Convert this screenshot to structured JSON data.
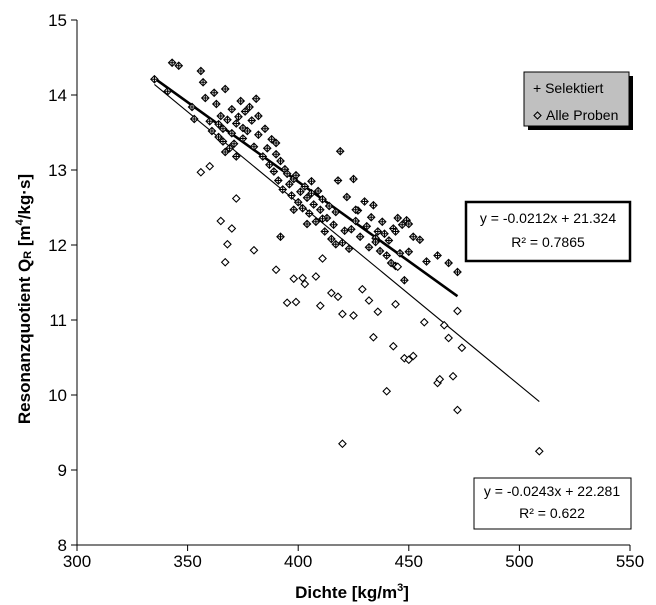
{
  "chart_data": {
    "type": "scatter",
    "xlabel": "Dichte [kg/m³]",
    "ylabel": "Resonanzquotient Q_R [m⁴/kg·s]",
    "xlim": [
      300,
      550
    ],
    "ylim": [
      8,
      15
    ],
    "x_ticks": [
      "300",
      "350",
      "400",
      "450",
      "500",
      "550"
    ],
    "y_ticks": [
      "8",
      "9",
      "10",
      "11",
      "12",
      "13",
      "14",
      "15"
    ],
    "legend_labels": [
      "Selektiert",
      "Alle Proben"
    ],
    "legend_position": "top-right",
    "series": [
      {
        "name": "Selektiert",
        "marker": "plus-in-diamond",
        "points": [
          [
            335,
            14.21
          ],
          [
            341,
            14.05
          ],
          [
            343,
            14.43
          ],
          [
            346,
            14.39
          ],
          [
            352,
            13.84
          ],
          [
            353,
            13.68
          ],
          [
            356,
            14.32
          ],
          [
            357,
            14.17
          ],
          [
            358,
            13.96
          ],
          [
            360,
            13.65
          ],
          [
            361,
            13.52
          ],
          [
            362,
            14.03
          ],
          [
            363,
            13.88
          ],
          [
            364,
            13.61
          ],
          [
            364,
            13.44
          ],
          [
            365,
            13.72
          ],
          [
            366,
            13.55
          ],
          [
            366,
            13.38
          ],
          [
            367,
            13.24
          ],
          [
            367,
            14.08
          ],
          [
            368,
            13.67
          ],
          [
            369,
            13.29
          ],
          [
            370,
            13.81
          ],
          [
            370,
            13.49
          ],
          [
            371,
            13.35
          ],
          [
            372,
            13.62
          ],
          [
            372,
            13.18
          ],
          [
            373,
            13.71
          ],
          [
            374,
            13.92
          ],
          [
            375,
            13.56
          ],
          [
            375,
            13.42
          ],
          [
            376,
            13.78
          ],
          [
            377,
            13.52
          ],
          [
            378,
            13.84
          ],
          [
            379,
            13.66
          ],
          [
            380,
            13.31
          ],
          [
            381,
            13.95
          ],
          [
            382,
            13.47
          ],
          [
            382,
            13.72
          ],
          [
            384,
            13.18
          ],
          [
            385,
            13.55
          ],
          [
            386,
            13.29
          ],
          [
            387,
            13.07
          ],
          [
            388,
            13.41
          ],
          [
            389,
            12.98
          ],
          [
            390,
            13.21
          ],
          [
            390,
            13.36
          ],
          [
            391,
            12.86
          ],
          [
            392,
            13.12
          ],
          [
            393,
            12.74
          ],
          [
            394,
            13.01
          ],
          [
            395,
            12.95
          ],
          [
            396,
            12.81
          ],
          [
            397,
            12.66
          ],
          [
            398,
            12.88
          ],
          [
            399,
            12.93
          ],
          [
            400,
            12.57
          ],
          [
            401,
            12.71
          ],
          [
            402,
            12.49
          ],
          [
            403,
            12.78
          ],
          [
            404,
            12.63
          ],
          [
            405,
            12.42
          ],
          [
            406,
            12.69
          ],
          [
            406,
            12.85
          ],
          [
            407,
            12.54
          ],
          [
            408,
            12.31
          ],
          [
            409,
            12.72
          ],
          [
            410,
            12.47
          ],
          [
            411,
            12.61
          ],
          [
            412,
            12.18
          ],
          [
            413,
            12.36
          ],
          [
            414,
            12.52
          ],
          [
            415,
            12.08
          ],
          [
            416,
            12.27
          ],
          [
            417,
            12.44
          ],
          [
            418,
            12.86
          ],
          [
            419,
            13.25
          ],
          [
            420,
            12.03
          ],
          [
            421,
            12.19
          ],
          [
            422,
            12.64
          ],
          [
            423,
            11.95
          ],
          [
            424,
            12.21
          ],
          [
            425,
            12.88
          ],
          [
            426,
            12.32
          ],
          [
            427,
            12.46
          ],
          [
            428,
            12.11
          ],
          [
            430,
            12.58
          ],
          [
            431,
            12.25
          ],
          [
            432,
            11.97
          ],
          [
            433,
            12.37
          ],
          [
            434,
            12.53
          ],
          [
            435,
            12.09
          ],
          [
            436,
            12.18
          ],
          [
            437,
            11.92
          ],
          [
            438,
            12.31
          ],
          [
            439,
            12.15
          ],
          [
            440,
            11.86
          ],
          [
            441,
            12.06
          ],
          [
            442,
            11.76
          ],
          [
            443,
            12.22
          ],
          [
            444,
            11.72
          ],
          [
            445,
            12.36
          ],
          [
            446,
            11.89
          ],
          [
            447,
            12.27
          ],
          [
            448,
            11.53
          ],
          [
            449,
            12.33
          ],
          [
            450,
            11.91
          ],
          [
            452,
            12.11
          ],
          [
            455,
            12.07
          ],
          [
            458,
            11.78
          ],
          [
            463,
            11.86
          ],
          [
            468,
            11.76
          ],
          [
            472,
            11.64
          ],
          [
            392,
            12.11
          ],
          [
            398,
            12.47
          ],
          [
            404,
            12.28
          ],
          [
            411,
            12.35
          ],
          [
            417,
            12.01
          ],
          [
            426,
            12.47
          ],
          [
            435,
            12.04
          ],
          [
            444,
            12.18
          ],
          [
            450,
            12.28
          ]
        ]
      },
      {
        "name": "Alle Proben",
        "marker": "diamond",
        "points": [
          [
            356,
            12.97
          ],
          [
            360,
            13.05
          ],
          [
            365,
            12.32
          ],
          [
            367,
            11.77
          ],
          [
            368,
            12.01
          ],
          [
            370,
            12.22
          ],
          [
            372,
            12.62
          ],
          [
            380,
            11.93
          ],
          [
            390,
            11.67
          ],
          [
            395,
            11.23
          ],
          [
            398,
            11.55
          ],
          [
            399,
            11.24
          ],
          [
            402,
            11.56
          ],
          [
            403,
            11.48
          ],
          [
            408,
            11.58
          ],
          [
            410,
            11.19
          ],
          [
            415,
            11.36
          ],
          [
            418,
            11.31
          ],
          [
            420,
            11.08
          ],
          [
            425,
            11.06
          ],
          [
            432,
            11.26
          ],
          [
            434,
            10.77
          ],
          [
            436,
            11.11
          ],
          [
            440,
            10.05
          ],
          [
            443,
            10.65
          ],
          [
            444,
            11.21
          ],
          [
            448,
            10.49
          ],
          [
            450,
            10.47
          ],
          [
            452,
            10.52
          ],
          [
            457,
            10.97
          ],
          [
            463,
            10.16
          ],
          [
            464,
            10.21
          ],
          [
            468,
            10.76
          ],
          [
            470,
            10.25
          ],
          [
            472,
            11.12
          ],
          [
            474,
            10.63
          ],
          [
            472,
            9.8
          ],
          [
            420,
            9.35
          ],
          [
            509,
            9.25
          ],
          [
            466,
            10.93
          ],
          [
            445,
            11.71
          ],
          [
            429,
            11.41
          ],
          [
            411,
            11.82
          ]
        ]
      }
    ],
    "trendlines": [
      {
        "series": "Selektiert",
        "equation": "y = -0.0212x + 21.324",
        "r2": "R² = 0.7865",
        "slope": -0.0212,
        "intercept": 21.324,
        "x_range": [
          335,
          472
        ]
      },
      {
        "series": "Alle Proben",
        "equation": "y = -0.0243x + 22.281",
        "r2": "R² = 0.622",
        "slope": -0.0243,
        "intercept": 22.281,
        "x_range": [
          335,
          509
        ]
      }
    ],
    "grid": false
  }
}
